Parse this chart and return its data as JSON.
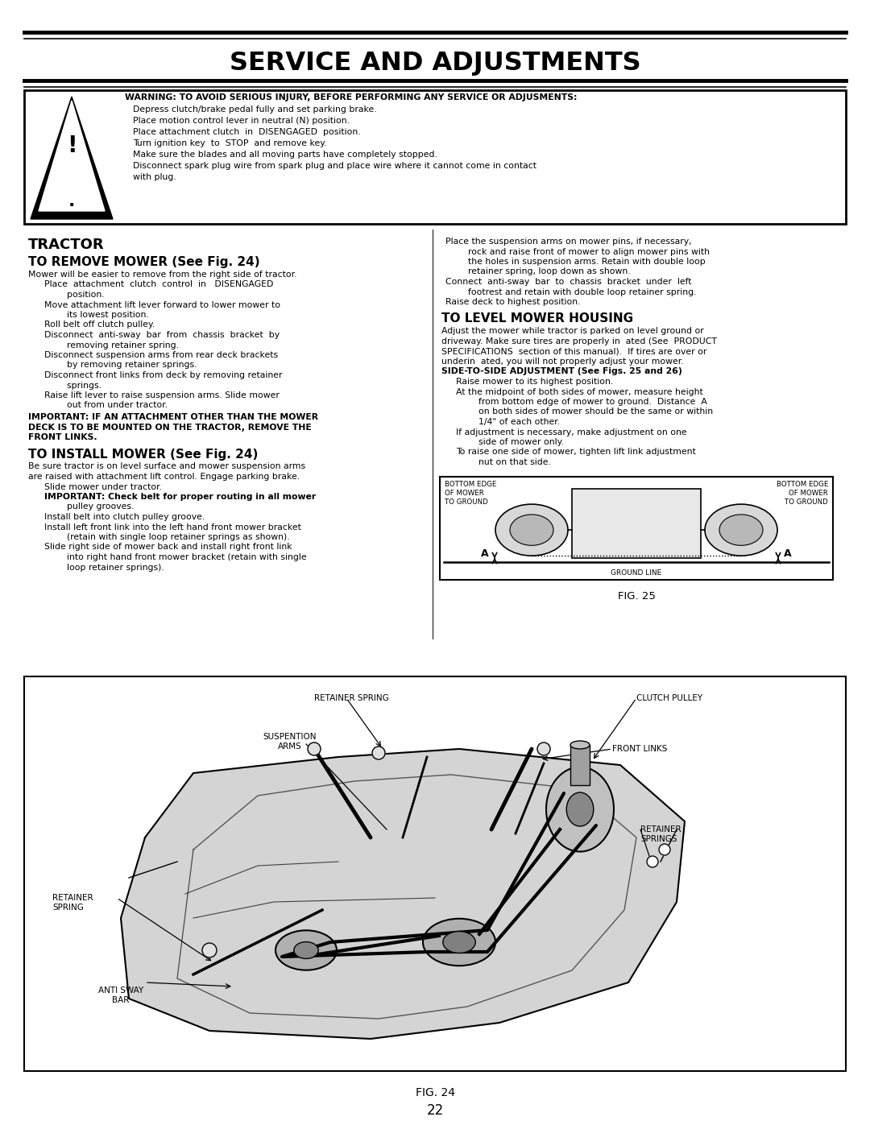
{
  "title": "SERVICE AND ADJUSTMENTS",
  "warning_title": "WARNING: TO AVOID SERIOUS INJURY, BEFORE PERFORMING ANY SERVICE OR ADJUSMENTS:",
  "warning_lines": [
    "Depress clutch/brake pedal fully and set parking brake.",
    "Place motion control lever in neutral (N) position.",
    "Place attachment clutch  in  DISENGAGED  position.",
    "Turn ignition key  to  STOP  and remove key.",
    "Make sure the blades and all moving parts have completely stopped.",
    "Disconnect spark plug wire from spark plug and place wire where it cannot come in contact",
    "with plug."
  ],
  "tractor_header": "TRACTOR",
  "remove_header": "TO REMOVE MOWER (See Fig. 24)",
  "remove_intro": "Mower will be easier to remove from the right side of tractor.",
  "remove_lines": [
    "Place  attachment  clutch  control  in   DISENGAGED",
    "        position.",
    "Move attachment lift lever forward to lower mower to",
    "        its lowest position.",
    "Roll belt off clutch pulley.",
    "Disconnect  anti-sway  bar  from  chassis  bracket  by",
    "        removing retainer spring.",
    "Disconnect suspension arms from rear deck brackets",
    "        by removing retainer springs.",
    "Disconnect front links from deck by removing retainer",
    "        springs.",
    "Raise lift lever to raise suspension arms. Slide mower",
    "        out from under tractor."
  ],
  "important1_lines": [
    "IMPORTANT: IF AN ATTACHMENT OTHER THAN THE MOWER",
    "DECK IS TO BE MOUNTED ON THE TRACTOR, REMOVE THE",
    "FRONT LINKS."
  ],
  "install_header": "TO INSTALL MOWER (See Fig. 24)",
  "install_intro_lines": [
    "Be sure tractor is on level surface and mower suspension arms",
    "are raised with attachment lift control. Engage parking brake."
  ],
  "install_lines": [
    "Slide mower under tractor.",
    "IMPORTANT: Check belt for proper routing in all mower",
    "        pulley grooves.",
    "Install belt into clutch pulley groove.",
    "Install left front link into the left hand front mower bracket",
    "        (retain with single loop retainer springs as shown).",
    "Slide right side of mower back and install right front link",
    "        into right hand front mower bracket (retain with single",
    "        loop retainer springs)."
  ],
  "right_col_lines": [
    "Place the suspension arms on mower pins, if necessary,",
    "        rock and raise front of mower to align mower pins with",
    "        the holes in suspension arms. Retain with double loop",
    "        retainer spring, loop down as shown.",
    "Connect  anti-sway  bar  to  chassis  bracket  under  left",
    "        footrest and retain with double loop retainer spring.",
    "Raise deck to highest position."
  ],
  "level_header": "TO LEVEL MOWER HOUSING",
  "level_intro_lines": [
    "Adjust the mower while tractor is parked on level ground or",
    "driveway. Make sure tires are properly in  ated (See  PRODUCT",
    "SPECIFICATIONS  section of this manual).  If tires are over or",
    "underin  ated, you will not properly adjust your mower.",
    "SIDE-TO-SIDE ADJUSTMENT (See Figs. 25 and 26)"
  ],
  "level_items": [
    "Raise mower to its highest position.",
    "At the midpoint of both sides of mower, measure height",
    "        from bottom edge of mower to ground.  Distance  A",
    "        on both sides of mower should be the same or within",
    "        1/4\" of each other.",
    "If adjustment is necessary, make adjustment on one",
    "        side of mower only.",
    "To raise one side of mower, tighten lift link adjustment",
    "        nut on that side."
  ],
  "fig24_labels": {
    "retainer_spring_top": "RETAINER SPRING",
    "suspension_arms": "SUSPENTION\nARMS",
    "clutch_pulley": "CLUTCH PULLEY",
    "front_links": "FRONT LINKS",
    "retainer_springs": "RETAINER\nSPRINGS",
    "retainer_spring_left": "RETAINER\nSPRING",
    "anti_sway_bar": "ANTI SWAY\nBAR"
  },
  "fig24_caption": "FIG. 24",
  "fig25_caption": "FIG. 25",
  "page_number": "22",
  "bg_color": "#ffffff",
  "text_color": "#000000"
}
